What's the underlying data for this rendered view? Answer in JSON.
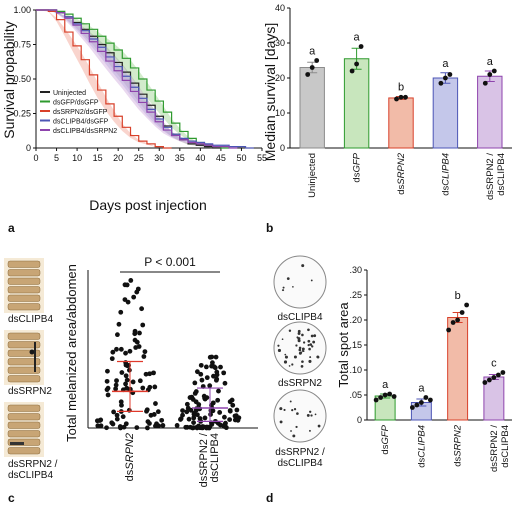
{
  "panels": {
    "a": "a",
    "b": "b",
    "c": "c",
    "d": "d"
  },
  "chart_data": [
    {
      "id": "a",
      "type": "line",
      "xlabel": "Days post injection",
      "ylabel": "Survival propability",
      "xlim": [
        0,
        55
      ],
      "ylim": [
        0,
        1.0
      ],
      "xticks": [
        "0",
        "5",
        "10",
        "15",
        "20",
        "25",
        "30",
        "35",
        "40",
        "45",
        "50",
        "55"
      ],
      "yticks": [
        "0",
        "0.25",
        "0.50",
        "0.75",
        "1.00"
      ],
      "legend_position": "bottom-left",
      "series": [
        {
          "name": "Uninjected",
          "color": "#222222",
          "band": "#999999",
          "x": [
            0,
            3,
            5,
            7,
            9,
            11,
            13,
            15,
            17,
            19,
            21,
            23,
            25,
            27,
            29,
            31,
            33,
            35,
            37,
            39,
            41,
            43,
            45
          ],
          "y": [
            1.0,
            1.0,
            0.98,
            0.95,
            0.91,
            0.86,
            0.81,
            0.75,
            0.69,
            0.62,
            0.55,
            0.47,
            0.39,
            0.31,
            0.23,
            0.16,
            0.1,
            0.06,
            0.03,
            0.02,
            0.01,
            0.0,
            0.0
          ]
        },
        {
          "name": "dsGFP/dsGFP",
          "color": "#2e9a2e",
          "band": "#9bd38f",
          "x": [
            0,
            3,
            5,
            7,
            9,
            11,
            13,
            15,
            17,
            19,
            21,
            23,
            25,
            27,
            29,
            31,
            33,
            35,
            37,
            39,
            41,
            43,
            45,
            47
          ],
          "y": [
            1.0,
            1.0,
            0.99,
            0.97,
            0.94,
            0.9,
            0.86,
            0.81,
            0.76,
            0.71,
            0.65,
            0.58,
            0.5,
            0.42,
            0.34,
            0.26,
            0.18,
            0.12,
            0.07,
            0.04,
            0.02,
            0.01,
            0.0,
            0.0
          ]
        },
        {
          "name": "dsSRPN2/dsGFP",
          "color": "#d8402a",
          "band": "#f2a090",
          "x": [
            0,
            3,
            5,
            7,
            9,
            11,
            13,
            15,
            17,
            19,
            21,
            23,
            25,
            27,
            29,
            31,
            33
          ],
          "y": [
            1.0,
            0.99,
            0.93,
            0.84,
            0.74,
            0.64,
            0.53,
            0.42,
            0.32,
            0.23,
            0.15,
            0.09,
            0.05,
            0.03,
            0.01,
            0.0,
            0.0
          ]
        },
        {
          "name": "dsCLIPB4/dsGFP",
          "color": "#4c55b5",
          "band": "#a9aee0",
          "x": [
            0,
            3,
            5,
            7,
            9,
            11,
            13,
            15,
            17,
            19,
            21,
            23,
            25,
            27,
            29,
            31,
            33,
            35,
            37,
            39,
            41,
            43,
            45,
            47,
            49,
            51,
            53
          ],
          "y": [
            1.0,
            1.0,
            0.98,
            0.95,
            0.9,
            0.85,
            0.79,
            0.73,
            0.66,
            0.59,
            0.52,
            0.44,
            0.36,
            0.28,
            0.21,
            0.15,
            0.1,
            0.07,
            0.05,
            0.04,
            0.03,
            0.02,
            0.02,
            0.01,
            0.01,
            0.0,
            0.0
          ]
        },
        {
          "name": "dsCLIPB4/dsSRPN2",
          "color": "#8e44ad",
          "band": "#cfa8dc",
          "x": [
            0,
            3,
            5,
            7,
            9,
            11,
            13,
            15,
            17,
            19,
            21,
            23,
            25,
            27,
            29,
            31,
            33,
            35,
            37,
            39,
            41,
            43,
            45,
            47,
            49
          ],
          "y": [
            1.0,
            1.0,
            0.98,
            0.94,
            0.89,
            0.83,
            0.77,
            0.7,
            0.63,
            0.56,
            0.49,
            0.41,
            0.33,
            0.26,
            0.19,
            0.13,
            0.09,
            0.06,
            0.04,
            0.03,
            0.02,
            0.01,
            0.01,
            0.0,
            0.0
          ]
        }
      ]
    },
    {
      "id": "b",
      "type": "bar",
      "ylabel": "Median survival [days]",
      "ylim": [
        0,
        40
      ],
      "yticks": [
        "0",
        "10",
        "20",
        "30",
        "40"
      ],
      "categories": [
        "Uninjected",
        "dsGFP",
        "dsSRPN2",
        "dsCLIPB4",
        "dsSRPN2 / dsCLIPB4"
      ],
      "category_parts": [
        {
          "plain": "Uninjected",
          "italic": "",
          "line2": ""
        },
        {
          "plain": "ds",
          "italic": "GFP",
          "line2": ""
        },
        {
          "plain": "ds",
          "italic": "SRPN2",
          "line2": ""
        },
        {
          "plain": "ds",
          "italic": "CLIPB4",
          "line2": ""
        },
        {
          "plain": "dsSRPN2 /",
          "italic": "",
          "line2": "dsCLIPB4"
        }
      ],
      "values": [
        23,
        25.5,
        14.3,
        20,
        20.5
      ],
      "errors": [
        1.5,
        3,
        0.4,
        1.5,
        1.5
      ],
      "points": [
        [
          21,
          23,
          25
        ],
        [
          22,
          24,
          29
        ],
        [
          14,
          14.5,
          14.5
        ],
        [
          18.5,
          20,
          21
        ],
        [
          18.5,
          21,
          22
        ]
      ],
      "letters": [
        "a",
        "a",
        "b",
        "a",
        "a"
      ],
      "colors": [
        "#8c8c8c",
        "#2e9a2e",
        "#d8402a",
        "#4c55b5",
        "#8e44ad"
      ],
      "fills": [
        "#c8c8c8",
        "#c8e6bd",
        "#f2bba8",
        "#c4c7ea",
        "#d9c3e6"
      ]
    },
    {
      "id": "c",
      "type": "scatter",
      "ylabel": "Total melanized area/abdomen",
      "annotation": "P < 0.001",
      "categories": [
        "dsSRPN2",
        "dsSRPN2 / dsCLIPB4"
      ],
      "median": [
        0.22,
        0.12
      ],
      "q1": [
        0.1,
        0.04
      ],
      "q3": [
        0.4,
        0.24
      ],
      "point_ranges": [
        [
          0.0,
          0.93
        ],
        [
          0.0,
          0.46
        ]
      ],
      "image_labels": [
        "dsCLIPB4",
        "dsSRPN2",
        "dsSRPN2 / dsCLIPB4"
      ],
      "colors": {
        "point": "#111111",
        "group1_lines": "#e0392b",
        "group2_lines": "#8e44ad"
      }
    },
    {
      "id": "d",
      "type": "bar",
      "ylabel": "Total spot area",
      "ylim": [
        0,
        0.3
      ],
      "yticks": [
        "0",
        ".05",
        ".10",
        ".15",
        ".20",
        ".25",
        ".30"
      ],
      "categories": [
        "dsGFP",
        "dsCLIPB4",
        "dsSRPN2",
        "dsSRPN2 / dsCLIPB4"
      ],
      "category_parts": [
        {
          "plain": "ds",
          "italic": "GFP",
          "line2": ""
        },
        {
          "plain": "ds",
          "italic": "CLIPB4",
          "line2": ""
        },
        {
          "plain": "ds",
          "italic": "SRPN2",
          "line2": ""
        },
        {
          "plain": "dsSRPN2 /",
          "italic": "",
          "line2": "dsCLIPB4"
        }
      ],
      "values": [
        0.048,
        0.035,
        0.205,
        0.086
      ],
      "errors": [
        0.004,
        0.007,
        0.01,
        0.005
      ],
      "points": [
        [
          0.04,
          0.045,
          0.05,
          0.052,
          0.047
        ],
        [
          0.025,
          0.03,
          0.035,
          0.045,
          0.04
        ],
        [
          0.18,
          0.195,
          0.2,
          0.215,
          0.23
        ],
        [
          0.075,
          0.08,
          0.085,
          0.09,
          0.095
        ]
      ],
      "letters": [
        "a",
        "a",
        "b",
        "c"
      ],
      "colors": [
        "#2e9a2e",
        "#4c55b5",
        "#d8402a",
        "#8e44ad"
      ],
      "fills": [
        "#c8e6bd",
        "#c4c7ea",
        "#f2bba8",
        "#d9c3e6"
      ],
      "image_labels": [
        "dsCLIPB4",
        "dsSRPN2",
        "dsSRPN2 / dsCLIPB4"
      ]
    }
  ]
}
